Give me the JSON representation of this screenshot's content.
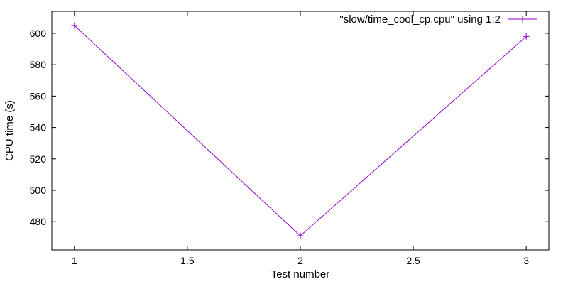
{
  "chart_data": {
    "type": "line",
    "title": "",
    "xlabel": "Test number",
    "ylabel": "CPU time (s)",
    "xlim": [
      0.9,
      3.1
    ],
    "ylim": [
      462,
      614
    ],
    "x_ticks": [
      1,
      1.5,
      2,
      2.5,
      3
    ],
    "x_tick_labels": [
      "1",
      "1.5",
      "2",
      "2.5",
      "3"
    ],
    "y_ticks": [
      480,
      500,
      520,
      540,
      560,
      580,
      600
    ],
    "y_tick_labels": [
      "480",
      "500",
      "520",
      "540",
      "560",
      "580",
      "600"
    ],
    "grid": false,
    "legend_position": "top-right",
    "series": [
      {
        "name": "\"slow/time_cool_cp.cpu\" using 1:2",
        "color": "#9400d3",
        "marker": "plus",
        "x": [
          1,
          2,
          3
        ],
        "y": [
          605,
          471,
          598
        ]
      }
    ]
  }
}
